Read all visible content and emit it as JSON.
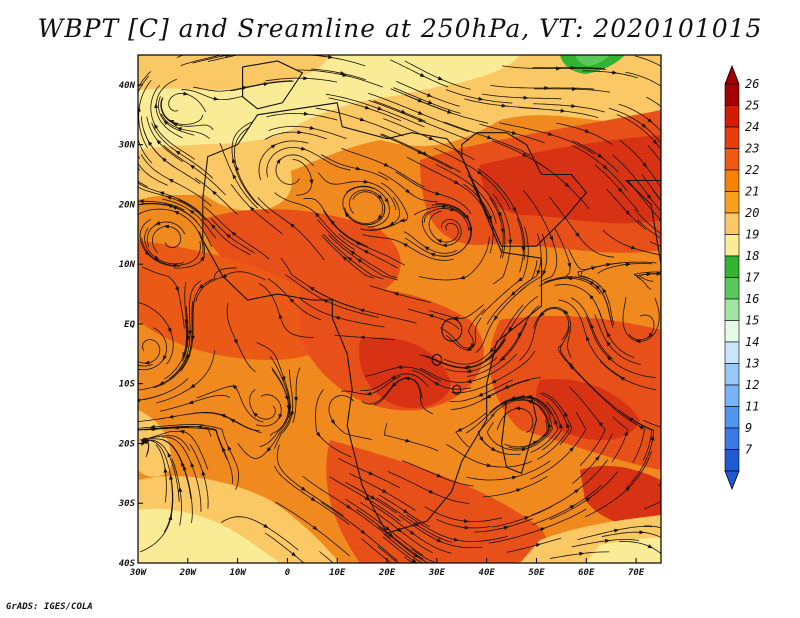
{
  "title": "WBPT [C] and Sreamline at 250hPa, VT: 2020101015",
  "footer": "GrADS: IGES/COLA",
  "map": {
    "x_ticks": [
      "30W",
      "20W",
      "10W",
      "0",
      "10E",
      "20E",
      "30E",
      "40E",
      "50E",
      "60E",
      "70E"
    ],
    "y_ticks": [
      "40N",
      "30N",
      "20N",
      "10N",
      "EQ",
      "10S",
      "20S",
      "30S",
      "40S"
    ],
    "lon_range": [
      -30,
      75
    ],
    "lat_range": [
      -40,
      45
    ]
  },
  "colorbar": {
    "labels": [
      "26",
      "25",
      "24",
      "23",
      "22",
      "21",
      "20",
      "19",
      "18",
      "17",
      "16",
      "15",
      "14",
      "13",
      "12",
      "11",
      "9",
      "7"
    ],
    "colors": [
      "#a50000",
      "#d21e00",
      "#e83c0a",
      "#f05a14",
      "#f58200",
      "#faa01e",
      "#fac864",
      "#faeb96",
      "#32b432",
      "#5ac85a",
      "#a0e6a0",
      "#e6fae6",
      "#c8e6fa",
      "#96c8fa",
      "#78b4fa",
      "#5096f0",
      "#3c78e6",
      "#1e5ad2"
    ],
    "top_color": "#a50000",
    "bottom_color": "#1e5ad2"
  }
}
